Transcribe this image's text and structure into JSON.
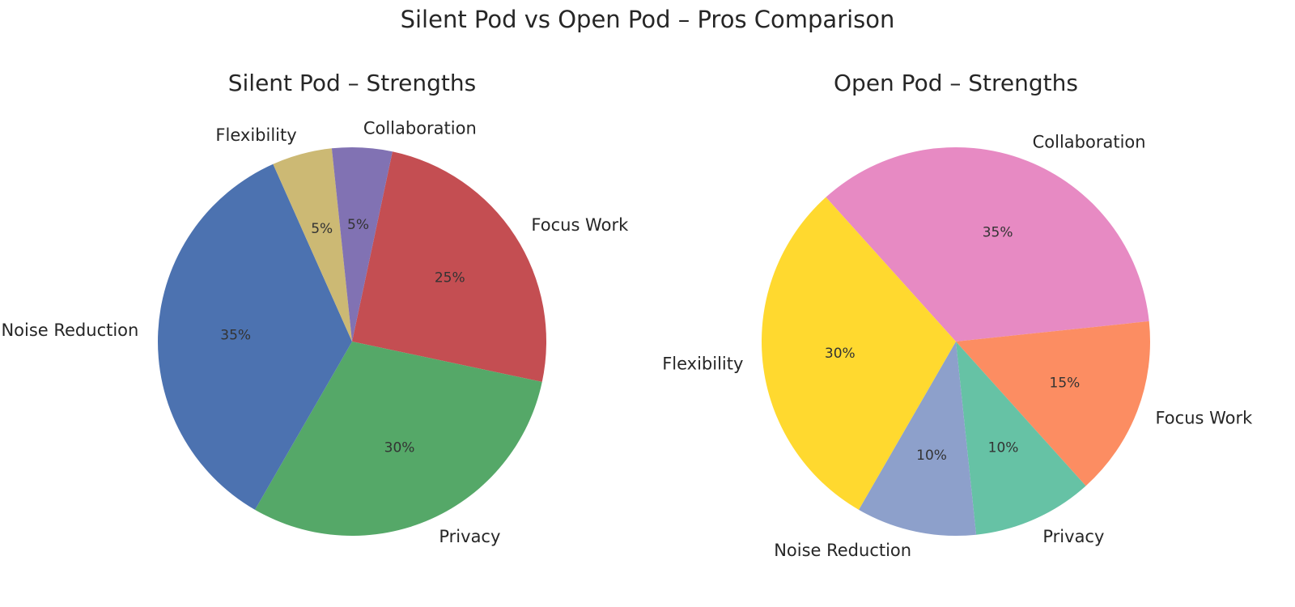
{
  "suptitle": "Silent Pod vs Open Pod – Pros Comparison",
  "chart_data": [
    {
      "type": "pie",
      "title": "Silent Pod – Strengths",
      "slices": [
        {
          "label": "Focus Work",
          "value": 25,
          "pct_label": "25%",
          "color": "#C44E52"
        },
        {
          "label": "Privacy",
          "value": 30,
          "pct_label": "30%",
          "color": "#55A868"
        },
        {
          "label": "Noise Reduction",
          "value": 35,
          "pct_label": "35%",
          "color": "#4C72B0"
        },
        {
          "label": "Flexibility",
          "value": 5,
          "pct_label": "5%",
          "color": "#CCB974"
        },
        {
          "label": "Collaboration",
          "value": 5,
          "pct_label": "5%",
          "color": "#8172B3"
        }
      ]
    },
    {
      "type": "pie",
      "title": "Open Pod – Strengths",
      "slices": [
        {
          "label": "Collaboration",
          "value": 35,
          "pct_label": "35%",
          "color": "#E78AC3"
        },
        {
          "label": "Focus Work",
          "value": 15,
          "pct_label": "15%",
          "color": "#FC8D62"
        },
        {
          "label": "Privacy",
          "value": 10,
          "pct_label": "10%",
          "color": "#66C2A5"
        },
        {
          "label": "Noise Reduction",
          "value": 10,
          "pct_label": "10%",
          "color": "#8DA0CB"
        },
        {
          "label": "Flexibility",
          "value": 30,
          "pct_label": "30%",
          "color": "#FFD92F"
        }
      ]
    }
  ]
}
